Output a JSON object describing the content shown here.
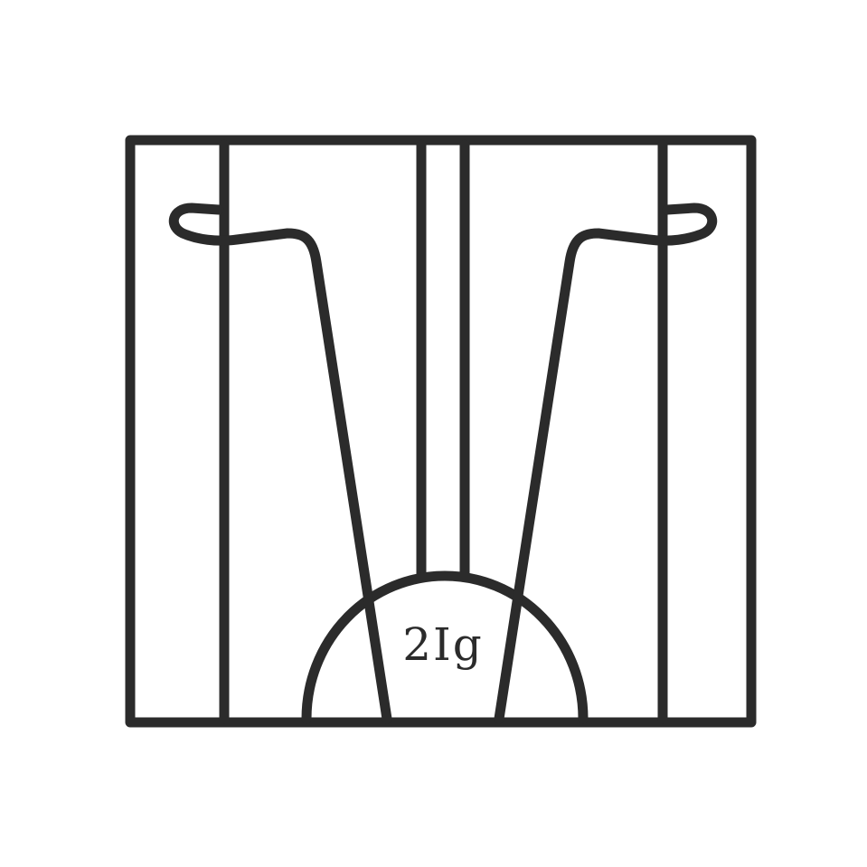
{
  "logo": {
    "text": "2Ig",
    "stroke_color": "#2b2b2b",
    "background_color": "#ffffff"
  }
}
